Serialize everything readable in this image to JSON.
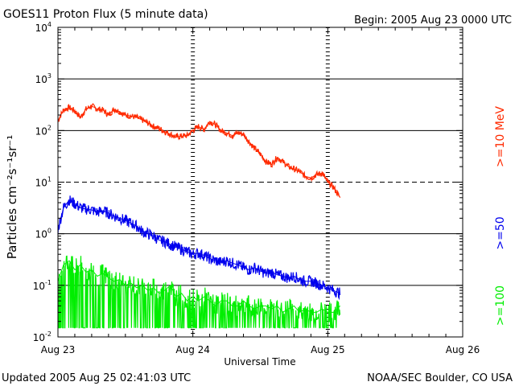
{
  "header": {
    "title": "GOES11 Proton Flux (5 minute data)",
    "begin": "Begin: 2005 Aug 23 0000 UTC"
  },
  "footer": {
    "updated": "Updated 2005 Aug 25 02:41:03 UTC",
    "credit": "NOAA/SEC Boulder, CO USA"
  },
  "chart_data": {
    "type": "line",
    "title": "GOES11 Proton Flux (5 minute data)",
    "xlabel": "Universal Time",
    "ylabel": "Particles cm⁻²s⁻¹sr⁻¹",
    "yscale": "log",
    "ylim": [
      0.01,
      10000
    ],
    "xlim": [
      0,
      72
    ],
    "x_unit": "hours since 2005 Aug 23 0000 UTC",
    "x_ticks": [
      {
        "x": 0,
        "label": "Aug 23"
      },
      {
        "x": 24,
        "label": "Aug 24"
      },
      {
        "x": 48,
        "label": "Aug 25"
      },
      {
        "x": 72,
        "label": "Aug 26"
      }
    ],
    "y_ticks": [
      {
        "value": 0.01,
        "base": "10",
        "exp": "-2"
      },
      {
        "value": 0.1,
        "base": "10",
        "exp": "-1"
      },
      {
        "value": 1,
        "base": "10",
        "exp": "0"
      },
      {
        "value": 10,
        "base": "10",
        "exp": "1"
      },
      {
        "value": 100,
        "base": "10",
        "exp": "2"
      },
      {
        "value": 1000,
        "base": "10",
        "exp": "3"
      },
      {
        "value": 10000,
        "base": "10",
        "exp": "4"
      }
    ],
    "solid_gridlines": [
      0.1,
      1,
      100,
      1000
    ],
    "dashed_gridlines": [
      10
    ],
    "day_boundaries": [
      24,
      48
    ],
    "series": [
      {
        "name": ">=10 MeV",
        "legend": ">=10 MeV",
        "color": "#ff2a00",
        "x": [
          0,
          0.5,
          1,
          2,
          3,
          4,
          5,
          6,
          7,
          8,
          9,
          10,
          11,
          12,
          13,
          14,
          15,
          16,
          17,
          18,
          19,
          20,
          21,
          22,
          23,
          24,
          25,
          26,
          27,
          28,
          29,
          30,
          31,
          32,
          33,
          34,
          35,
          36,
          37,
          38,
          39,
          40,
          41,
          42,
          43,
          44,
          45,
          46,
          47,
          48,
          49,
          50.2
        ],
        "values": [
          150,
          200,
          250,
          280,
          240,
          180,
          260,
          300,
          260,
          250,
          200,
          260,
          230,
          200,
          190,
          180,
          160,
          140,
          120,
          110,
          95,
          85,
          75,
          78,
          80,
          100,
          120,
          105,
          150,
          130,
          100,
          90,
          80,
          90,
          85,
          60,
          45,
          35,
          25,
          22,
          30,
          25,
          20,
          18,
          16,
          13,
          12,
          14,
          15,
          10,
          8,
          5
        ]
      },
      {
        "name": ">=50 MeV",
        "legend": ">=50",
        "color": "#0000ee",
        "x": [
          0,
          0.5,
          1,
          2,
          3,
          4,
          5,
          6,
          7,
          8,
          9,
          10,
          11,
          12,
          13,
          14,
          15,
          16,
          17,
          18,
          19,
          20,
          21,
          22,
          23,
          24,
          25,
          26,
          27,
          28,
          29,
          30,
          31,
          32,
          33,
          34,
          35,
          36,
          37,
          38,
          39,
          40,
          41,
          42,
          43,
          44,
          45,
          46,
          47,
          48,
          49,
          50.2
        ],
        "values": [
          1.2,
          2,
          3.2,
          4.5,
          3.8,
          3.2,
          3,
          2.9,
          2.6,
          2.8,
          2.5,
          2.2,
          2.0,
          1.8,
          1.6,
          1.4,
          1.1,
          1.0,
          0.9,
          0.75,
          0.7,
          0.62,
          0.55,
          0.5,
          0.45,
          0.4,
          0.42,
          0.38,
          0.33,
          0.3,
          0.28,
          0.3,
          0.27,
          0.25,
          0.22,
          0.2,
          0.22,
          0.19,
          0.17,
          0.18,
          0.16,
          0.15,
          0.14,
          0.15,
          0.13,
          0.12,
          0.12,
          0.11,
          0.1,
          0.09,
          0.08,
          0.07
        ]
      },
      {
        "name": ">=100 MeV",
        "legend": ">=100",
        "color": "#00ee00",
        "x": [
          0,
          1,
          2,
          3,
          4,
          5,
          6,
          7,
          8,
          9,
          10,
          11,
          12,
          13,
          14,
          15,
          16,
          17,
          18,
          19,
          20,
          21,
          22,
          23,
          24,
          25,
          26,
          27,
          28,
          29,
          30,
          31,
          32,
          33,
          34,
          35,
          36,
          37,
          38,
          39,
          40,
          41,
          42,
          43,
          44,
          45,
          46,
          47,
          48,
          49,
          50.2
        ],
        "values": [
          0.12,
          0.25,
          0.3,
          0.2,
          0.25,
          0.18,
          0.2,
          0.15,
          0.17,
          0.14,
          0.12,
          0.13,
          0.1,
          0.11,
          0.09,
          0.1,
          0.08,
          0.09,
          0.07,
          0.08,
          0.1,
          0.06,
          0.07,
          0.05,
          0.06,
          0.05,
          0.06,
          0.05,
          0.04,
          0.05,
          0.05,
          0.04,
          0.04,
          0.05,
          0.04,
          0.035,
          0.04,
          0.04,
          0.035,
          0.04,
          0.03,
          0.035,
          0.04,
          0.03,
          0.035,
          0.03,
          0.03,
          0.035,
          0.03,
          0.03,
          0.04
        ],
        "floor": 0.015
      }
    ]
  }
}
